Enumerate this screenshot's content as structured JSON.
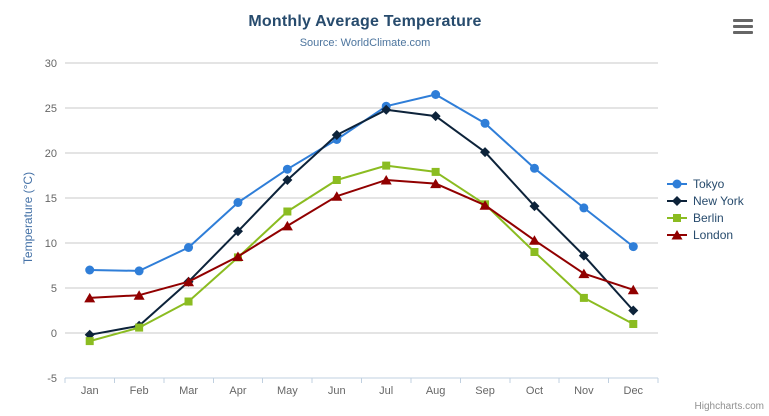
{
  "chart_data": {
    "type": "line",
    "title": "Monthly Average Temperature",
    "subtitle": "Source: WorldClimate.com",
    "xlabel": "",
    "ylabel": "Temperature (°C)",
    "categories": [
      "Jan",
      "Feb",
      "Mar",
      "Apr",
      "May",
      "Jun",
      "Jul",
      "Aug",
      "Sep",
      "Oct",
      "Nov",
      "Dec"
    ],
    "series": [
      {
        "name": "Tokyo",
        "color": "#2f7ed8",
        "marker": "circle",
        "values": [
          7.0,
          6.9,
          9.5,
          14.5,
          18.2,
          21.5,
          25.2,
          26.5,
          23.3,
          18.3,
          13.9,
          9.6
        ]
      },
      {
        "name": "New York",
        "color": "#0d233a",
        "marker": "diamond",
        "values": [
          -0.2,
          0.8,
          5.7,
          11.3,
          17.0,
          22.0,
          24.8,
          24.1,
          20.1,
          14.1,
          8.6,
          2.5
        ]
      },
      {
        "name": "Berlin",
        "color": "#8bbc21",
        "marker": "square",
        "values": [
          -0.9,
          0.6,
          3.5,
          8.4,
          13.5,
          17.0,
          18.6,
          17.9,
          14.3,
          9.0,
          3.9,
          1.0
        ]
      },
      {
        "name": "London",
        "color": "#910000",
        "marker": "triangle",
        "values": [
          3.9,
          4.2,
          5.7,
          8.5,
          11.9,
          15.2,
          17.0,
          16.6,
          14.2,
          10.3,
          6.6,
          4.8
        ]
      }
    ],
    "ylim": [
      -5,
      30
    ],
    "ytick_step": 5,
    "grid": true,
    "legend_position": "right"
  },
  "menu": {
    "icon": "hamburger-icon"
  },
  "credits": {
    "label": "Highcharts.com"
  },
  "colors": {
    "title": "#274b6d",
    "subtitle": "#4d759e",
    "axis_label": "#666666",
    "yaxis_title": "#4572a7",
    "gridline": "#c8c8c8",
    "axis_line": "#c0d0e0",
    "legend_text": "#274b6d",
    "credits": "#909090",
    "menu_icon": "#666666"
  }
}
